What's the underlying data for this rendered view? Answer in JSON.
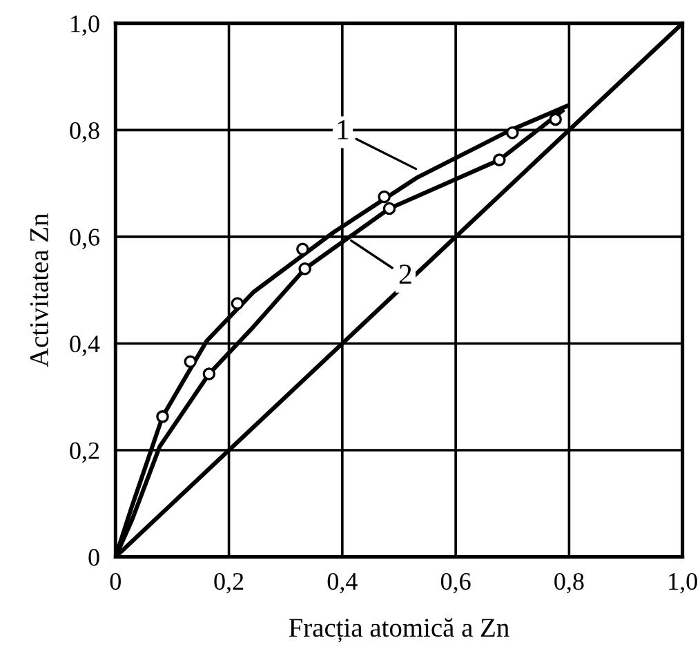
{
  "chart_data": {
    "type": "line",
    "xlabel": "Fracția atomică a Zn",
    "ylabel": "Activitatea Zn",
    "xlim": [
      0,
      1
    ],
    "ylim": [
      0,
      1
    ],
    "xticks": [
      0,
      {
        "value": 0.2,
        "label": "0,2"
      },
      {
        "value": 0.4,
        "label": "0,4"
      },
      {
        "value": 0.6,
        "label": "0,6"
      },
      {
        "value": 0.8,
        "label": "0,8"
      },
      {
        "value": 1,
        "label": "1,0"
      }
    ],
    "yticks": [
      0,
      {
        "value": 0.2,
        "label": "0,2"
      },
      {
        "value": 0.4,
        "label": "0,4"
      },
      {
        "value": 0.6,
        "label": "0,6"
      },
      {
        "value": 0.8,
        "label": "0,8"
      },
      {
        "value": 1,
        "label": "1,0"
      }
    ],
    "grid": true,
    "marker": "none",
    "line_style": "solid",
    "series": [
      {
        "color": "#000000",
        "x": [
          0,
          0.029,
          0.083,
          0.161,
          0.243,
          0.384,
          0.532,
          0.697,
          0.796
        ],
        "values": [
          0,
          0.095,
          0.263,
          0.405,
          0.496,
          0.608,
          0.711,
          0.8,
          0.845
        ]
      },
      {
        "color": "#000000",
        "x": [
          0,
          0.029,
          0.078,
          0.165,
          0.243,
          0.334,
          0.483,
          0.677,
          0.788
        ],
        "values": [
          0,
          0.069,
          0.207,
          0.343,
          0.431,
          0.54,
          0.653,
          0.744,
          0.836
        ]
      },
      {
        "color": "#000000",
        "x": [
          0,
          1
        ],
        "values": [
          0,
          1
        ]
      },
      {
        "type": "scatter",
        "marker": "circle",
        "color": "#000000",
        "x": [
          0.083,
          0.132,
          0.215,
          0.33,
          0.474,
          0.7
        ],
        "values": [
          0.263,
          0.366,
          0.475,
          0.577,
          0.675,
          0.795
        ]
      },
      {
        "type": "scatter",
        "marker": "circle",
        "color": "#000000",
        "x": [
          0.165,
          0.334,
          0.483,
          0.677,
          0.776
        ],
        "values": [
          0.343,
          0.54,
          0.653,
          0.744,
          0.82
        ]
      }
    ],
    "annotations": [
      {
        "text": "1",
        "x": 0.536,
        "y": 0.724
      },
      {
        "text": "2",
        "x": 0.41,
        "y": 0.597
      }
    ]
  }
}
